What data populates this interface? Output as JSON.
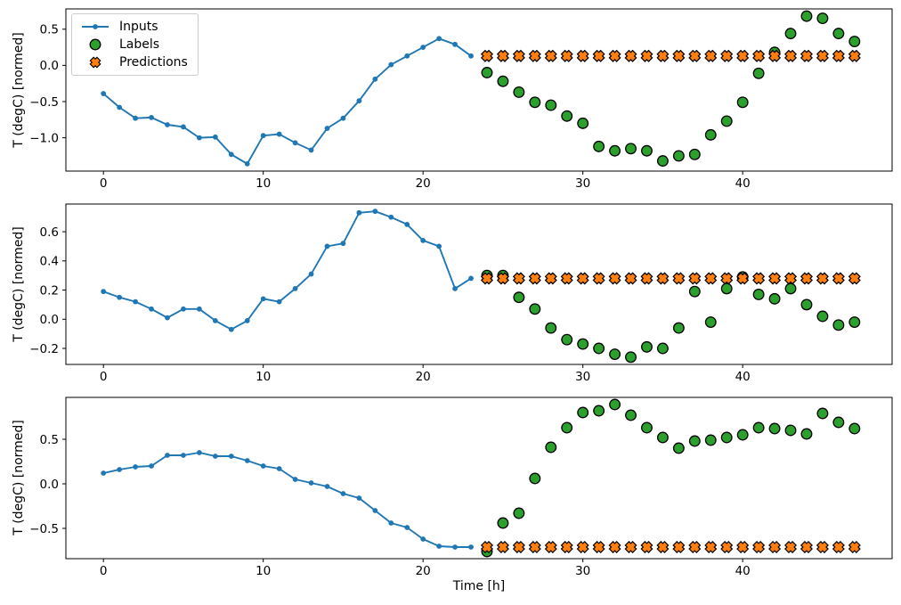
{
  "colors": {
    "inputs": "#1f77b4",
    "labels": "#2ca02c",
    "predictions": "#ff7f0e",
    "marker_edge": "#000000",
    "axis": "#000000"
  },
  "legend": {
    "position": "upper-left",
    "items": [
      {
        "label": "Inputs",
        "marker": "line-dot",
        "color": "#1f77b4"
      },
      {
        "label": "Labels",
        "marker": "circle",
        "color": "#2ca02c"
      },
      {
        "label": "Predictions",
        "marker": "x",
        "color": "#ff7f0e"
      }
    ]
  },
  "chart_data": [
    {
      "type": "line",
      "title": "",
      "ylabel": "T (degC) [normed]",
      "xlabel": "",
      "grid": false,
      "xlim": [
        -2.35,
        49.35
      ],
      "ylim": [
        -1.46,
        0.78
      ],
      "xticks": [
        0,
        10,
        20,
        30,
        40
      ],
      "xtick_labels": [
        "0",
        "10",
        "20",
        "30",
        "40"
      ],
      "yticks": [
        0.5,
        0.0,
        -0.5,
        -1.0
      ],
      "ytick_labels": [
        "0.5",
        "0.0",
        "−0.5",
        "−1.0"
      ],
      "series": [
        {
          "name": "Inputs",
          "type": "line-markers",
          "x": [
            0,
            1,
            2,
            3,
            4,
            5,
            6,
            7,
            8,
            9,
            10,
            11,
            12,
            13,
            14,
            15,
            16,
            17,
            18,
            19,
            20,
            21,
            22,
            23
          ],
          "values": [
            -0.39,
            -0.58,
            -0.73,
            -0.72,
            -0.82,
            -0.85,
            -1.0,
            -0.99,
            -1.23,
            -1.36,
            -0.97,
            -0.95,
            -1.07,
            -1.17,
            -0.87,
            -0.73,
            -0.49,
            -0.19,
            0.01,
            0.13,
            0.25,
            0.37,
            0.29,
            0.13
          ]
        },
        {
          "name": "Labels",
          "type": "scatter",
          "marker": "circle",
          "x": [
            24,
            25,
            26,
            27,
            28,
            29,
            30,
            31,
            32,
            33,
            34,
            35,
            36,
            37,
            38,
            39,
            40,
            41,
            42,
            43,
            44,
            45,
            46,
            47
          ],
          "values": [
            -0.1,
            -0.22,
            -0.37,
            -0.51,
            -0.55,
            -0.7,
            -0.8,
            -1.12,
            -1.18,
            -1.15,
            -1.18,
            -1.32,
            -1.25,
            -1.23,
            -0.96,
            -0.77,
            -0.51,
            -0.11,
            0.18,
            0.44,
            0.68,
            0.65,
            0.44,
            0.33
          ]
        },
        {
          "name": "Predictions",
          "type": "scatter",
          "marker": "x",
          "x": [
            24,
            25,
            26,
            27,
            28,
            29,
            30,
            31,
            32,
            33,
            34,
            35,
            36,
            37,
            38,
            39,
            40,
            41,
            42,
            43,
            44,
            45,
            46,
            47
          ],
          "values": [
            0.13,
            0.13,
            0.13,
            0.13,
            0.13,
            0.13,
            0.13,
            0.13,
            0.13,
            0.13,
            0.13,
            0.13,
            0.13,
            0.13,
            0.13,
            0.13,
            0.13,
            0.13,
            0.13,
            0.13,
            0.13,
            0.13,
            0.13,
            0.13
          ]
        }
      ]
    },
    {
      "type": "line",
      "title": "",
      "ylabel": "T (degC) [normed]",
      "xlabel": "",
      "grid": false,
      "xlim": [
        -2.35,
        49.35
      ],
      "ylim": [
        -0.31,
        0.79
      ],
      "xticks": [
        0,
        10,
        20,
        30,
        40
      ],
      "xtick_labels": [
        "0",
        "10",
        "20",
        "30",
        "40"
      ],
      "yticks": [
        0.6,
        0.4,
        0.2,
        0.0,
        -0.2
      ],
      "ytick_labels": [
        "0.6",
        "0.4",
        "0.2",
        "0.0",
        "−0.2"
      ],
      "series": [
        {
          "name": "Inputs",
          "type": "line-markers",
          "x": [
            0,
            1,
            2,
            3,
            4,
            5,
            6,
            7,
            8,
            9,
            10,
            11,
            12,
            13,
            14,
            15,
            16,
            17,
            18,
            19,
            20,
            21,
            22,
            23
          ],
          "values": [
            0.19,
            0.15,
            0.12,
            0.07,
            0.01,
            0.07,
            0.07,
            -0.01,
            -0.07,
            -0.01,
            0.14,
            0.12,
            0.21,
            0.31,
            0.5,
            0.52,
            0.73,
            0.74,
            0.7,
            0.65,
            0.54,
            0.5,
            0.21,
            0.28
          ]
        },
        {
          "name": "Labels",
          "type": "scatter",
          "marker": "circle",
          "x": [
            24,
            25,
            26,
            27,
            28,
            29,
            30,
            31,
            32,
            33,
            34,
            35,
            36,
            37,
            38,
            39,
            40,
            41,
            42,
            43,
            44,
            45,
            46,
            47
          ],
          "values": [
            0.3,
            0.3,
            0.15,
            0.07,
            -0.06,
            -0.14,
            -0.17,
            -0.2,
            -0.24,
            -0.26,
            -0.19,
            -0.2,
            -0.06,
            0.19,
            -0.02,
            0.21,
            0.29,
            0.17,
            0.14,
            0.21,
            0.1,
            0.02,
            -0.04,
            -0.02
          ]
        },
        {
          "name": "Predictions",
          "type": "scatter",
          "marker": "x",
          "x": [
            24,
            25,
            26,
            27,
            28,
            29,
            30,
            31,
            32,
            33,
            34,
            35,
            36,
            37,
            38,
            39,
            40,
            41,
            42,
            43,
            44,
            45,
            46,
            47
          ],
          "values": [
            0.28,
            0.28,
            0.28,
            0.28,
            0.28,
            0.28,
            0.28,
            0.28,
            0.28,
            0.28,
            0.28,
            0.28,
            0.28,
            0.28,
            0.28,
            0.28,
            0.28,
            0.28,
            0.28,
            0.28,
            0.28,
            0.28,
            0.28,
            0.28
          ]
        }
      ]
    },
    {
      "type": "line",
      "title": "",
      "ylabel": "T (degC) [normed]",
      "xlabel": "Time [h]",
      "grid": false,
      "xlim": [
        -2.35,
        49.35
      ],
      "ylim": [
        -0.84,
        0.97
      ],
      "xticks": [
        0,
        10,
        20,
        30,
        40
      ],
      "xtick_labels": [
        "0",
        "10",
        "20",
        "30",
        "40"
      ],
      "yticks": [
        0.5,
        0.0,
        -0.5
      ],
      "ytick_labels": [
        "0.5",
        "0.0",
        "−0.5"
      ],
      "series": [
        {
          "name": "Inputs",
          "type": "line-markers",
          "x": [
            0,
            1,
            2,
            3,
            4,
            5,
            6,
            7,
            8,
            9,
            10,
            11,
            12,
            13,
            14,
            15,
            16,
            17,
            18,
            19,
            20,
            21,
            22,
            23
          ],
          "values": [
            0.12,
            0.16,
            0.19,
            0.2,
            0.32,
            0.32,
            0.35,
            0.31,
            0.31,
            0.26,
            0.2,
            0.17,
            0.05,
            0.01,
            -0.03,
            -0.11,
            -0.16,
            -0.3,
            -0.44,
            -0.49,
            -0.62,
            -0.7,
            -0.71,
            -0.71
          ]
        },
        {
          "name": "Labels",
          "type": "scatter",
          "marker": "circle",
          "x": [
            24,
            25,
            26,
            27,
            28,
            29,
            30,
            31,
            32,
            33,
            34,
            35,
            36,
            37,
            38,
            39,
            40,
            41,
            42,
            43,
            44,
            45,
            46,
            47
          ],
          "values": [
            -0.76,
            -0.44,
            -0.33,
            0.06,
            0.41,
            0.63,
            0.8,
            0.82,
            0.89,
            0.77,
            0.63,
            0.52,
            0.4,
            0.48,
            0.49,
            0.52,
            0.55,
            0.63,
            0.62,
            0.6,
            0.56,
            0.79,
            0.69,
            0.62
          ]
        },
        {
          "name": "Predictions",
          "type": "scatter",
          "marker": "x",
          "x": [
            24,
            25,
            26,
            27,
            28,
            29,
            30,
            31,
            32,
            33,
            34,
            35,
            36,
            37,
            38,
            39,
            40,
            41,
            42,
            43,
            44,
            45,
            46,
            47
          ],
          "values": [
            -0.71,
            -0.71,
            -0.71,
            -0.71,
            -0.71,
            -0.71,
            -0.71,
            -0.71,
            -0.71,
            -0.71,
            -0.71,
            -0.71,
            -0.71,
            -0.71,
            -0.71,
            -0.71,
            -0.71,
            -0.71,
            -0.71,
            -0.71,
            -0.71,
            -0.71,
            -0.71,
            -0.71
          ]
        }
      ]
    }
  ]
}
